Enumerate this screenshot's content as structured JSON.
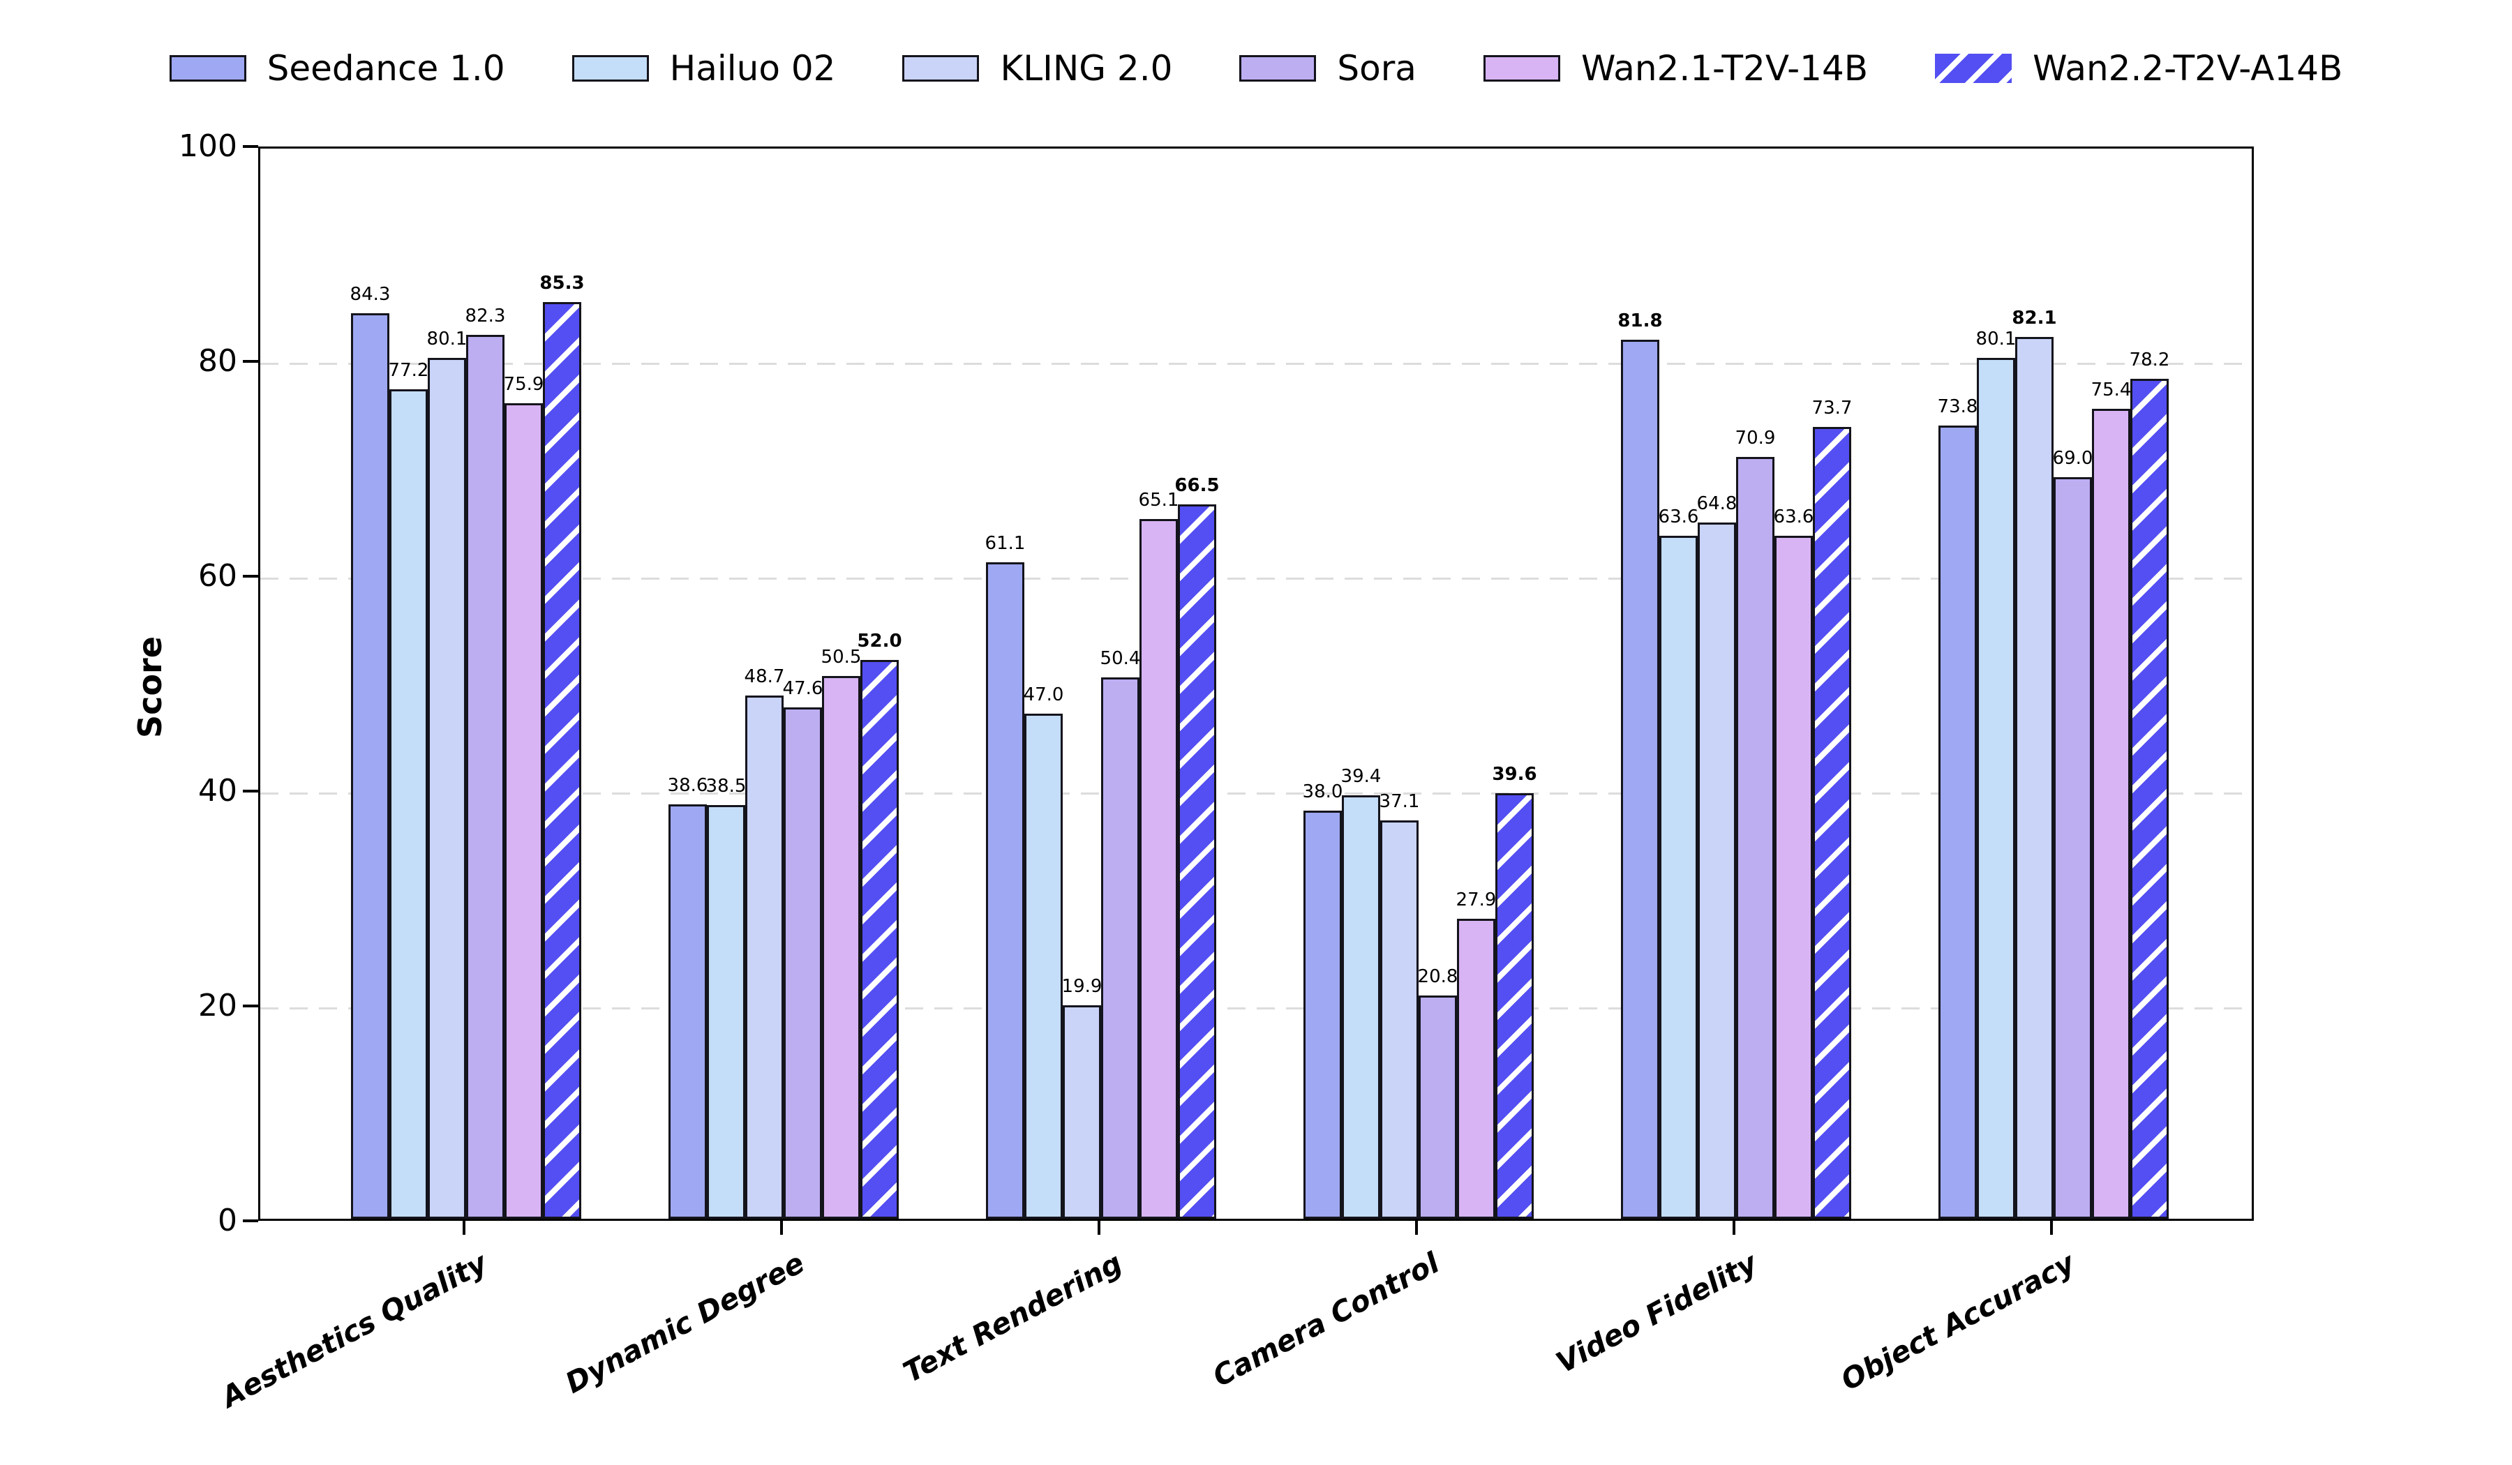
{
  "chart_data": {
    "type": "bar",
    "title": "",
    "ylabel": "Score",
    "ylim": [
      0,
      100
    ],
    "yticks": [
      0,
      20,
      40,
      60,
      80,
      100
    ],
    "grid": "dashed horizontal gridlines at 20, 40, 60, 80",
    "legend_position": "top row, centered, no frame",
    "value_label_format": "one decimal place above each bar; best value per category shown in bold",
    "categories": [
      "Aesthetics Quality",
      "Dynamic Degree",
      "Text Rendering",
      "Camera Control",
      "Video Fidelity",
      "Object Accuracy"
    ],
    "series": [
      {
        "name": "Seedance 1.0",
        "color": "#9fa8f2",
        "hatch": false,
        "values": [
          84.3,
          38.6,
          61.1,
          38.0,
          81.8,
          73.8
        ]
      },
      {
        "name": "Hailuo 02",
        "color": "#c4ddf8",
        "hatch": false,
        "values": [
          77.2,
          38.5,
          47.0,
          39.4,
          63.6,
          80.1
        ]
      },
      {
        "name": "KLING 2.0",
        "color": "#cad3f8",
        "hatch": false,
        "values": [
          80.1,
          48.7,
          19.9,
          37.1,
          64.8,
          82.1
        ]
      },
      {
        "name": "Sora",
        "color": "#bdaef2",
        "hatch": false,
        "values": [
          82.3,
          47.6,
          50.4,
          20.8,
          70.9,
          69.0
        ]
      },
      {
        "name": "Wan2.1-T2V-14B",
        "color": "#d8b4f4",
        "hatch": false,
        "values": [
          75.9,
          50.5,
          65.1,
          27.9,
          63.6,
          75.4
        ]
      },
      {
        "name": "Wan2.2-T2V-A14B",
        "color": "#544ff2",
        "hatch": true,
        "values": [
          85.3,
          52.0,
          66.5,
          39.6,
          73.7,
          78.2
        ]
      }
    ],
    "hatch_style": "white diagonal '/' stripes on the Wan2.2-T2V-A14B bars and legend swatch",
    "bar_edge_color": "#14141c",
    "background_color": "#ffffff"
  }
}
